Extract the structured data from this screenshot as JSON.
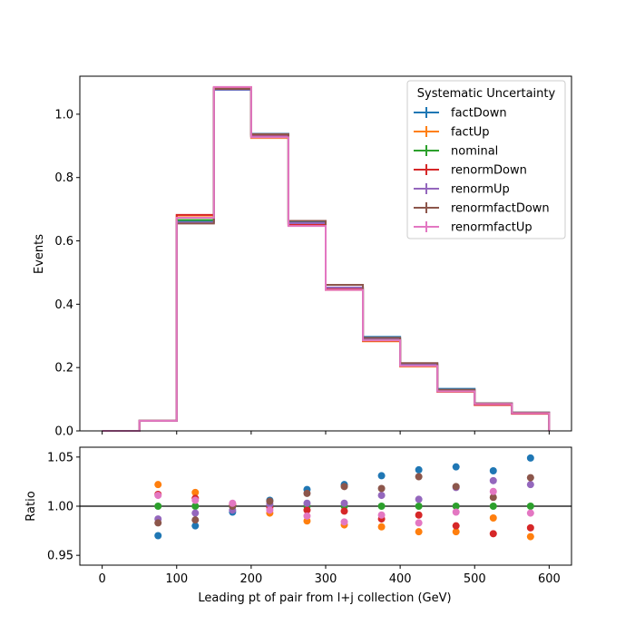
{
  "chart_data": {
    "type": "line",
    "xlabel": "Leading pt of pair from l+j collection (GeV)",
    "xlim": [
      -30,
      630
    ],
    "xticks": [
      0,
      100,
      200,
      300,
      400,
      500,
      600
    ],
    "bin_edges": [
      0,
      50,
      100,
      150,
      200,
      250,
      300,
      350,
      400,
      450,
      500,
      550,
      600
    ],
    "legend": {
      "title": "Systematic Uncertainty",
      "placement": "top-right"
    },
    "top": {
      "ylabel": "Events",
      "ylim": [
        0,
        1.12
      ],
      "yticks": [
        0.0,
        0.2,
        0.4,
        0.6,
        0.8,
        1.0
      ],
      "series": [
        {
          "name": "factDown",
          "color": "#1f77b4",
          "values": [
            0.0,
            0.032,
            0.661,
            1.077,
            0.938,
            0.661,
            0.449,
            0.297,
            0.213,
            0.133,
            0.087,
            0.058
          ]
        },
        {
          "name": "factUp",
          "color": "#ff7f0e",
          "values": [
            0.0,
            0.032,
            0.68,
            1.085,
            0.925,
            0.648,
            0.445,
            0.283,
            0.203,
            0.124,
            0.082,
            0.055
          ]
        },
        {
          "name": "nominal",
          "color": "#2ca02c",
          "values": [
            0.0,
            0.032,
            0.666,
            1.082,
            0.932,
            0.654,
            0.452,
            0.289,
            0.208,
            0.127,
            0.084,
            0.056
          ]
        },
        {
          "name": "renormDown",
          "color": "#d62728",
          "values": [
            0.0,
            0.032,
            0.682,
            1.084,
            0.932,
            0.651,
            0.45,
            0.285,
            0.206,
            0.124,
            0.082,
            0.054
          ]
        },
        {
          "name": "renormUp",
          "color": "#9467bd",
          "values": [
            0.0,
            0.032,
            0.658,
            1.078,
            0.93,
            0.656,
            0.453,
            0.292,
            0.21,
            0.128,
            0.086,
            0.057
          ]
        },
        {
          "name": "renormfactDown",
          "color": "#8c564b",
          "values": [
            0.0,
            0.032,
            0.655,
            1.08,
            0.937,
            0.663,
            0.461,
            0.294,
            0.214,
            0.13,
            0.087,
            0.058
          ]
        },
        {
          "name": "renormfactUp",
          "color": "#e377c2",
          "values": [
            0.0,
            0.032,
            0.673,
            1.086,
            0.927,
            0.647,
            0.445,
            0.286,
            0.205,
            0.125,
            0.085,
            0.056
          ]
        }
      ]
    },
    "ratio": {
      "ylabel": "Ratio",
      "ylim": [
        0.94,
        1.06
      ],
      "yticks": [
        0.95,
        1.0,
        1.05
      ],
      "yticklabels": [
        "0.95",
        "1.00",
        "1.05"
      ],
      "reference": 1.0,
      "x": [
        75,
        125,
        175,
        225,
        275,
        325,
        375,
        425,
        475,
        525,
        575
      ],
      "series": [
        {
          "name": "factDown",
          "color": "#1f77b4",
          "values": [
            0.97,
            0.98,
            0.994,
            1.006,
            1.017,
            1.022,
            1.031,
            1.037,
            1.04,
            1.036,
            1.049
          ]
        },
        {
          "name": "factUp",
          "color": "#ff7f0e",
          "values": [
            1.022,
            1.014,
            1.002,
            0.993,
            0.985,
            0.981,
            0.979,
            0.974,
            0.974,
            0.988,
            0.969
          ]
        },
        {
          "name": "nominal",
          "color": "#2ca02c",
          "values": [
            1.0,
            1.0,
            1.0,
            1.0,
            1.0,
            1.0,
            1.0,
            1.0,
            1.0,
            1.0,
            1.0
          ]
        },
        {
          "name": "renormDown",
          "color": "#d62728",
          "values": [
            1.012,
            1.008,
            1.001,
            0.999,
            0.996,
            0.995,
            0.987,
            0.991,
            0.98,
            0.972,
            0.978
          ]
        },
        {
          "name": "renormUp",
          "color": "#9467bd",
          "values": [
            0.987,
            0.993,
            0.996,
            1.002,
            1.003,
            1.003,
            1.011,
            1.007,
            1.019,
            1.026,
            1.022
          ]
        },
        {
          "name": "renormfactDown",
          "color": "#8c564b",
          "values": [
            0.983,
            0.986,
            1.0,
            1.005,
            1.013,
            1.02,
            1.018,
            1.03,
            1.02,
            1.009,
            1.029
          ]
        },
        {
          "name": "renormfactUp",
          "color": "#e377c2",
          "values": [
            1.011,
            1.006,
            1.003,
            0.996,
            0.99,
            0.984,
            0.991,
            0.983,
            0.994,
            1.015,
            0.993
          ]
        }
      ]
    }
  }
}
